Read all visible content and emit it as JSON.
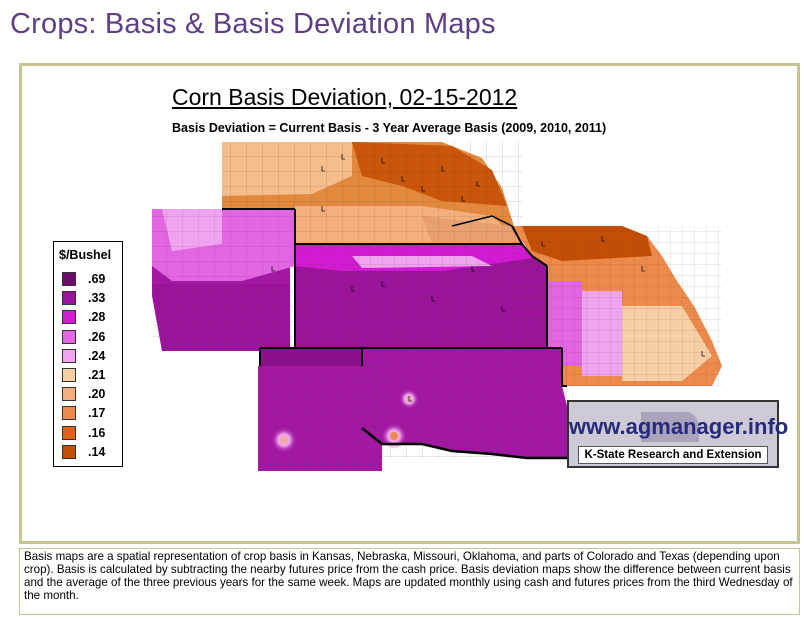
{
  "page": {
    "title": "Crops: Basis & Basis Deviation Maps"
  },
  "map": {
    "title": "Corn Basis Deviation, 02-15-2012",
    "subtitle": "Basis Deviation = Current Basis - 3 Year Average Basis (2009, 2010, 2011)",
    "legend": {
      "title": "$/Bushel",
      "items": [
        {
          "label": ".69",
          "color": "#6e0a6e"
        },
        {
          "label": ".33",
          "color": "#9b129b"
        },
        {
          "label": ".28",
          "color": "#d21ad2"
        },
        {
          "label": ".26",
          "color": "#e265e2"
        },
        {
          "label": ".24",
          "color": "#f0a4f0"
        },
        {
          "label": ".21",
          "color": "#f7cfa6"
        },
        {
          "label": ".20",
          "color": "#f3b07d"
        },
        {
          "label": ".17",
          "color": "#ec8a4c"
        },
        {
          "label": ".16",
          "color": "#e06218"
        },
        {
          "label": ".14",
          "color": "#c24d04"
        }
      ]
    }
  },
  "logo": {
    "url_text": "www.agmanager.info",
    "tagline": "K-State Research and Extension"
  },
  "caption": "Basis maps are a spatial representation of crop basis in Kansas, Nebraska, Missouri, Oklahoma, and parts of Colorado and Texas (depending upon crop).  Basis is calculated by subtracting the nearby futures price from the cash price.  Basis deviation maps show the difference between current basis and the average of the three previous years for the same week.  Maps are updated monthly using cash and futures prices from the third Wednesday of the month."
}
